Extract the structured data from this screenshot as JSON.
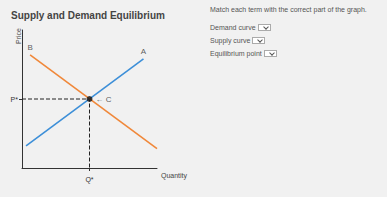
{
  "chart_data": {
    "type": "line",
    "title": "Supply and Demand Equilibrium",
    "x_label": "Quantity",
    "y_label": "Price",
    "xlim": [
      0,
      10
    ],
    "ylim": [
      0,
      10
    ],
    "xticks": [
      {
        "value": 5,
        "label": "Q*"
      }
    ],
    "yticks": [
      {
        "value": 5,
        "label": "P*"
      }
    ],
    "grid": false,
    "series": [
      {
        "type": "line",
        "color": "#3d8fd8",
        "values": [
          [
            0.3,
            1.6
          ],
          [
            9,
            7.9
          ]
        ]
      },
      {
        "type": "line",
        "color": "#f0883a",
        "values": [
          [
            0.6,
            8.2
          ],
          [
            10,
            1.4
          ]
        ]
      },
      {
        "type": "line",
        "color": "#222222",
        "line_style": "dashed",
        "values": [
          [
            0,
            5
          ],
          [
            5,
            5
          ],
          [
            5,
            0
          ]
        ]
      },
      {
        "type": "scatter",
        "color": "#111111",
        "marker": "circle",
        "values": [
          [
            5,
            5
          ]
        ]
      }
    ],
    "annotations": [
      {
        "text": "A",
        "x": 9,
        "y": 7.9
      },
      {
        "text": "B",
        "x": 0.6,
        "y": 8.2
      },
      {
        "text": "← C",
        "x": 5,
        "y": 5
      }
    ]
  },
  "panel": {
    "instruction": "Match each term with the correct part of the graph.",
    "items": [
      "Demand curve",
      "Supply curve",
      "Equilibrium point"
    ]
  }
}
